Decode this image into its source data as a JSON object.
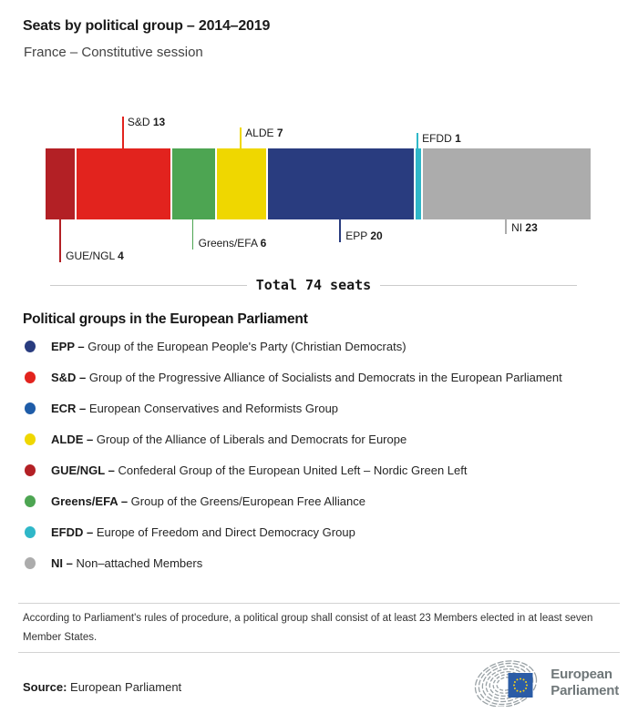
{
  "header": {
    "title": "Seats by political group – 2014–2019",
    "subtitle": "France – Constitutive session"
  },
  "chart_data": {
    "type": "bar",
    "title": "Seats by political group – 2014–2019",
    "subtitle": "France – Constitutive session",
    "total_seats": 74,
    "total_label": "Total 74 seats",
    "categories": [
      "GUE/NGL",
      "S&D",
      "Greens/EFA",
      "ALDE",
      "EPP",
      "EFDD",
      "NI"
    ],
    "values": [
      4,
      13,
      6,
      7,
      20,
      1,
      23
    ],
    "segments": [
      {
        "group": "GUE/NGL",
        "seats": 4,
        "color": "#b32025",
        "callout": "down",
        "line_len": 47
      },
      {
        "group": "S&D",
        "seats": 13,
        "color": "#e2231e",
        "callout": "up",
        "line_len": 35
      },
      {
        "group": "Greens/EFA",
        "seats": 6,
        "color": "#4da552",
        "callout": "down",
        "line_len": 33
      },
      {
        "group": "ALDE",
        "seats": 7,
        "color": "#efd700",
        "callout": "up",
        "line_len": 23
      },
      {
        "group": "EPP",
        "seats": 20,
        "color": "#293c7f",
        "callout": "down",
        "line_len": 25
      },
      {
        "group": "EFDD",
        "seats": 1,
        "color": "#2fb7c8",
        "callout": "up",
        "line_len": 17
      },
      {
        "group": "NI",
        "seats": 23,
        "color": "#acacac",
        "callout": "down",
        "line_len": 16
      }
    ],
    "layout": {
      "orientation": "horizontal-stacked",
      "gap_color": "#ffffff",
      "legend_position": "below"
    }
  },
  "legend": {
    "heading": "Political groups in the European Parliament",
    "items": [
      {
        "abbr": "EPP",
        "color": "#293c7f",
        "desc": "Group of the European People's Party (Christian Democrats)"
      },
      {
        "abbr": "S&D",
        "color": "#e2231e",
        "desc": "Group of the Progressive Alliance of Socialists and Democrats in the European Parliament"
      },
      {
        "abbr": "ECR",
        "color": "#1e5ca8",
        "desc": "European Conservatives and Reformists Group"
      },
      {
        "abbr": "ALDE",
        "color": "#efd700",
        "desc": "Group of the Alliance of Liberals and Democrats for Europe"
      },
      {
        "abbr": "GUE/NGL",
        "color": "#b32025",
        "desc": "Confederal Group of the European United Left – Nordic Green Left"
      },
      {
        "abbr": "Greens/EFA",
        "color": "#4da552",
        "desc": "Group of the Greens/European Free Alliance"
      },
      {
        "abbr": "EFDD",
        "color": "#2fb7c8",
        "desc": "Europe of Freedom and Direct Democracy Group"
      },
      {
        "abbr": "NI",
        "color": "#acacac",
        "desc": "Non–attached Members"
      }
    ]
  },
  "footer": {
    "note": "According to Parliament's rules of procedure, a political group shall consist of at least 23 Members elected in at least seven Member States.",
    "source_label": "Source:",
    "source_value": "European Parliament",
    "logo_line1": "European",
    "logo_line2": "Parliament",
    "logo_colors": {
      "arcs": "#99a1a5",
      "square": "#2b5ca6",
      "stars": "#f7d117"
    }
  }
}
